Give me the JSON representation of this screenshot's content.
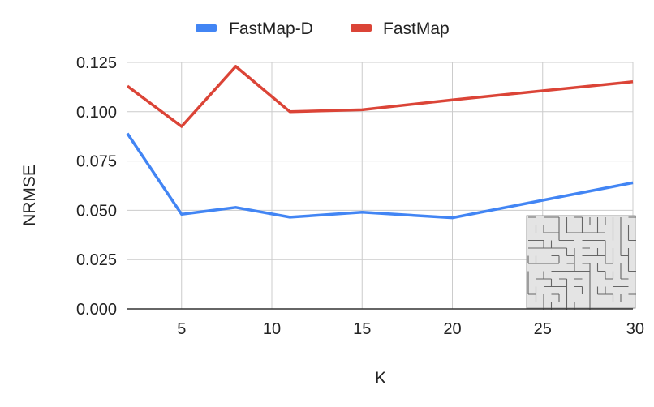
{
  "chart_data": {
    "type": "line",
    "xlabel": "K",
    "ylabel": "NRMSE",
    "xlim": [
      2,
      30
    ],
    "ylim": [
      0,
      0.125
    ],
    "x_ticks": [
      5,
      10,
      15,
      20,
      25,
      30
    ],
    "x_tick_labels": [
      "5",
      "10",
      "15",
      "20",
      "25",
      "30"
    ],
    "y_ticks": [
      0,
      0.025,
      0.05,
      0.075,
      0.1,
      0.125
    ],
    "y_tick_labels": [
      "0.000",
      "0.025",
      "0.050",
      "0.075",
      "0.100",
      "0.125"
    ],
    "grid": true,
    "legend_position": "top",
    "x": [
      2,
      5,
      8,
      11,
      15,
      20,
      30
    ],
    "series": [
      {
        "name": "FastMap-D",
        "color": "#4285f4",
        "values": [
          0.089,
          0.048,
          0.0515,
          0.0465,
          0.049,
          0.0462,
          0.064
        ]
      },
      {
        "name": "FastMap",
        "color": "#db4437",
        "values": [
          0.113,
          0.0925,
          0.123,
          0.1,
          0.101,
          0.106,
          0.1152
        ]
      }
    ]
  },
  "inset": {
    "description_icon": "maze-icon"
  }
}
